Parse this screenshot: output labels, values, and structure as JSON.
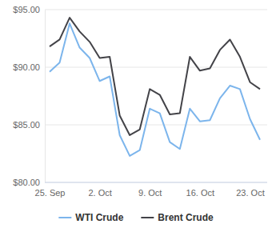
{
  "chart_data": {
    "type": "line",
    "categories": [
      "25. Sep",
      null,
      null,
      null,
      null,
      "2. Oct",
      null,
      null,
      null,
      null,
      "9. Oct",
      null,
      null,
      null,
      null,
      "16. Oct",
      null,
      null,
      null,
      null,
      "23. Oct",
      null
    ],
    "series": [
      {
        "name": "WTI Crude",
        "color": "#7cb5ec",
        "values": [
          89.6,
          90.4,
          93.8,
          91.7,
          90.8,
          88.8,
          89.2,
          84.1,
          82.3,
          82.8,
          86.4,
          86.0,
          83.5,
          82.9,
          86.4,
          85.3,
          85.4,
          87.3,
          88.4,
          88.1,
          85.5,
          83.7
        ]
      },
      {
        "name": "Brent Crude",
        "color": "#434348",
        "values": [
          91.8,
          92.4,
          94.3,
          93.1,
          92.2,
          90.8,
          90.9,
          85.8,
          84.1,
          84.6,
          88.1,
          87.6,
          85.9,
          86.0,
          90.9,
          89.7,
          89.9,
          91.5,
          92.4,
          90.9,
          88.7,
          88.1
        ]
      }
    ],
    "ylim": [
      80,
      95
    ],
    "yticks": [
      {
        "value": 80,
        "label": "$80.00"
      },
      {
        "value": 85,
        "label": "$85.00"
      },
      {
        "value": 90,
        "label": "$90.00"
      },
      {
        "value": 95,
        "label": "$95.00"
      }
    ],
    "grid": true,
    "legend": "bottom"
  }
}
